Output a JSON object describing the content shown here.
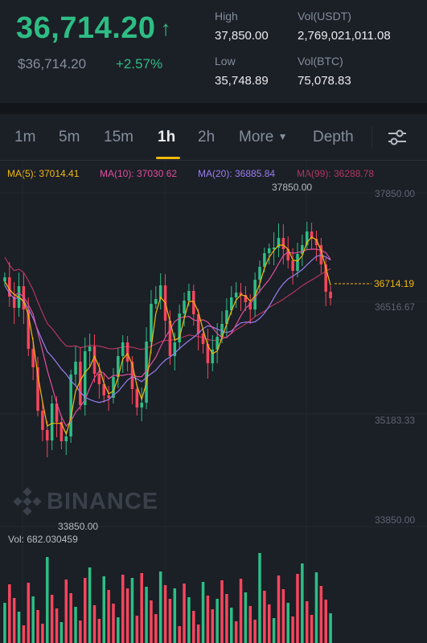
{
  "ticker": {
    "last_price": "36,714.20",
    "fiat_price": "$36,714.20",
    "change": "+2.57%",
    "high_label": "High",
    "high_value": "37,850.00",
    "low_label": "Low",
    "low_value": "35,748.89",
    "vol_usdt_label": "Vol(USDT)",
    "vol_usdt_value": "2,769,021,011.08",
    "vol_btc_label": "Vol(BTC)",
    "vol_btc_value": "75,078.83"
  },
  "tabs": {
    "t1m": "1m",
    "t5m": "5m",
    "t15m": "15m",
    "t1h": "1h",
    "t2h": "2h",
    "more": "More",
    "depth": "Depth",
    "active": "1h"
  },
  "ma": {
    "ma5": "MA(5): 37014.41",
    "ma10": "MA(10): 37030.62",
    "ma20": "MA(20): 36885.84",
    "ma99": "MA(99): 36288.78"
  },
  "axis": {
    "y1": "37850.00",
    "y2": "36516.67",
    "y3": "35183.33",
    "y4": "33850.00",
    "current": "36714.19",
    "high_marker": "37850.00",
    "low_marker": "33850.00"
  },
  "watermark": "BINANCE",
  "volume": {
    "label": "Vol: 682.030459"
  },
  "colors": {
    "up": "#2ebd85",
    "down": "#f6465d",
    "ma5": "#f0b90b",
    "ma10": "#e04f9e",
    "ma20": "#9a7ef0",
    "ma99": "#b23660",
    "accent": "#f0b90b"
  }
}
